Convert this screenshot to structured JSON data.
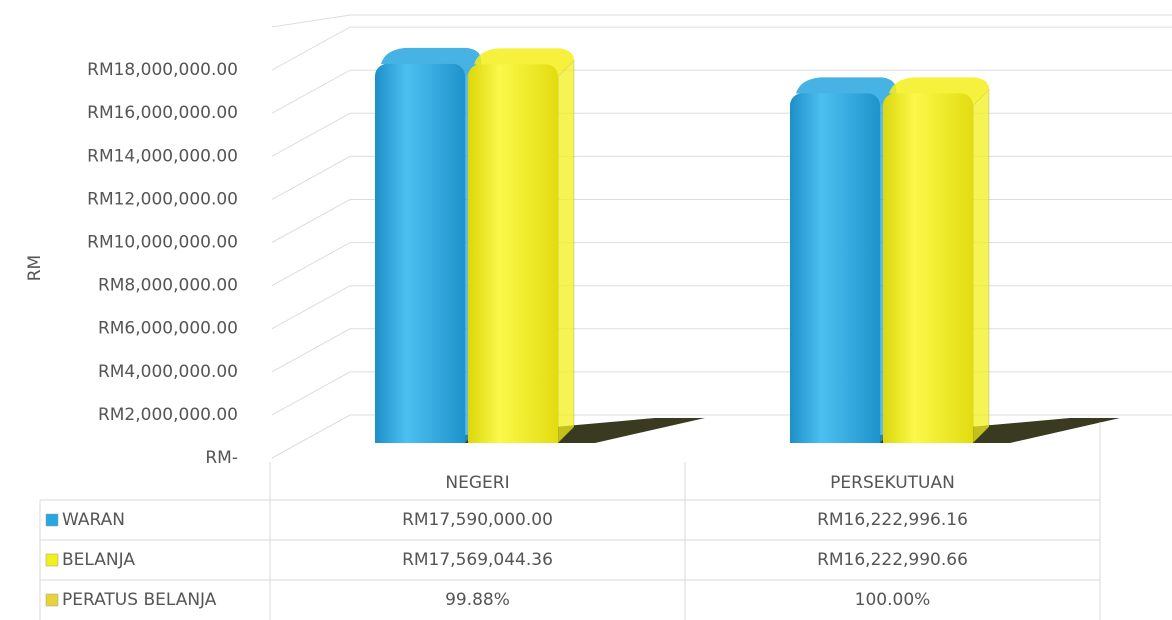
{
  "chart_data": {
    "type": "bar3d",
    "y_label": "RM",
    "categories": [
      "NEGERI",
      "PERSEKUTUAN"
    ],
    "series": [
      {
        "name": "WARAN",
        "color": "#27a6e1",
        "values": [
          17590000.0,
          16222996.16
        ],
        "value_labels": [
          "RM17,590,000.00",
          "RM16,222,996.16"
        ]
      },
      {
        "name": "BELANJA",
        "color": "#f3ef1b",
        "values": [
          17569044.36,
          16222990.66
        ],
        "value_labels": [
          "RM17,569,044.36",
          "RM16,222,990.66"
        ]
      },
      {
        "name": "PERATUS BELANJA",
        "color": "#e8d43a",
        "values": [
          99.88,
          100.0
        ],
        "value_labels": [
          "99.88%",
          "100.00%"
        ],
        "table_only": true
      }
    ],
    "ylim": [
      0,
      20000000
    ],
    "yticks": [
      {
        "value": 0,
        "label": "RM-"
      },
      {
        "value": 2000000,
        "label": "RM2,000,000.00"
      },
      {
        "value": 4000000,
        "label": "RM4,000,000.00"
      },
      {
        "value": 6000000,
        "label": "RM6,000,000.00"
      },
      {
        "value": 8000000,
        "label": "RM8,000,000.00"
      },
      {
        "value": 10000000,
        "label": "RM10,000,000.00"
      },
      {
        "value": 12000000,
        "label": "RM12,000,000.00"
      },
      {
        "value": 14000000,
        "label": "RM14,000,000.00"
      },
      {
        "value": 16000000,
        "label": "RM16,000,000.00"
      },
      {
        "value": 18000000,
        "label": "RM18,000,000.00"
      }
    ],
    "grid": true
  }
}
